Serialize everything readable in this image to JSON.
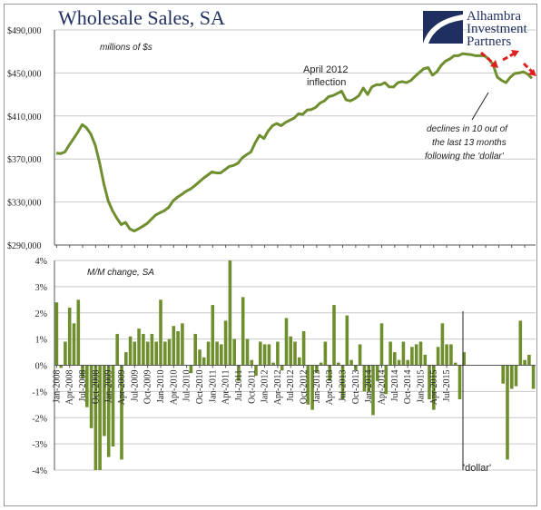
{
  "chart_data": [
    {
      "type": "line",
      "title": "Wholesale Sales, SA",
      "unit_label": "millions of $s",
      "ylim": [
        290000,
        490000
      ],
      "yticks": [
        "$290,000",
        "$330,000",
        "$370,000",
        "$410,000",
        "$450,000",
        "$490,000"
      ],
      "ytick_values": [
        290000,
        330000,
        370000,
        410000,
        450000,
        490000
      ],
      "grid": true,
      "series": [
        {
          "color": "#6f8f2f",
          "values": [
            375500,
            375000,
            376500,
            383000,
            389000,
            395000,
            402000,
            399000,
            393000,
            383000,
            367000,
            347000,
            331000,
            322000,
            315000,
            309000,
            311000,
            305000,
            303000,
            305000,
            307500,
            310000,
            314000,
            318000,
            320000,
            322000,
            325000,
            331000,
            334500,
            337000,
            340000,
            342000,
            345000,
            348500,
            352000,
            355000,
            358000,
            357000,
            357000,
            360000,
            363000,
            364000,
            366000,
            371000,
            374000,
            376500,
            385000,
            392000,
            389000,
            396000,
            401000,
            403000,
            401000,
            404000,
            406000,
            408000,
            412000,
            411500,
            415500,
            416000,
            418000,
            422000,
            424000,
            428000,
            429000,
            431000,
            433000,
            425000,
            424000,
            426000,
            429000,
            436000,
            430000,
            437000,
            439000,
            439000,
            441000,
            437000,
            437000,
            441000,
            442000,
            441000,
            443000,
            447000,
            450500,
            454000,
            455000,
            448000,
            451000,
            457000,
            461000,
            463000,
            466000,
            466000,
            468000,
            467500,
            467000,
            466000,
            466000,
            466000,
            463000,
            458000,
            446000,
            443000,
            441000,
            446000,
            449500,
            450000,
            451000,
            449000,
            445000
          ]
        }
      ],
      "annotations": {
        "inflection_line1": "April 2012",
        "inflection_line2": "inflection",
        "declines_line1": "declines in 10 out of",
        "declines_line2": "the last 13 months",
        "declines_line3": "following the 'dollar'"
      },
      "logo": {
        "line1": "Alhambra",
        "line2": "Investment",
        "line3": "Partners"
      }
    },
    {
      "type": "bar",
      "title": "M/M change, SA",
      "ylim": [
        -4,
        4
      ],
      "yticks": [
        "-4%",
        "-3%",
        "-2%",
        "-1%",
        "0%",
        "1%",
        "2%",
        "3%",
        "4%"
      ],
      "ytick_values": [
        -4,
        -3,
        -2,
        -1,
        0,
        1,
        2,
        3,
        4
      ],
      "grid": true,
      "color": "#6f8f2f",
      "xtick_labels": [
        "Jan-2008",
        "Apr-2008",
        "Jul-2008",
        "Oct-2008",
        "Jan-2009",
        "Apr-2009",
        "Jul-2009",
        "Oct-2009",
        "Jan-2010",
        "Apr-2010",
        "Jul-2010",
        "Oct-2010",
        "Jan-2011",
        "Apr-2011",
        "Jul-2011",
        "Oct-2011",
        "Jan-2012",
        "Apr-2012",
        "Jul-2012",
        "Oct-2012",
        "Jan-2013",
        "Apr-2013",
        "Jul-2013",
        "Oct-2013",
        "Jan-2014",
        "Apr-2014",
        "Jul-2014",
        "Oct-2014",
        "Jan-2015",
        "Apr-2015",
        "Jul-2015"
      ],
      "values": [
        2.4,
        -0.1,
        0.9,
        2.2,
        1.6,
        2.5,
        -0.5,
        -1.6,
        -2.4,
        -4.0,
        -4.0,
        -2.7,
        -3.5,
        -3.1,
        1.2,
        -3.6,
        0.5,
        1.1,
        0.9,
        1.4,
        1.2,
        0.9,
        1.2,
        0.9,
        2.5,
        0.9,
        1.0,
        1.5,
        1.3,
        1.6,
        0.0,
        -0.3,
        1.2,
        0.6,
        0.3,
        0.9,
        2.3,
        0.9,
        0.8,
        1.7,
        4.0,
        1.0,
        -0.6,
        2.6,
        1.0,
        0.2,
        -0.4,
        0.9,
        0.8,
        0.8,
        0.1,
        0.9,
        -0.2,
        1.8,
        1.1,
        0.9,
        0.3,
        1.3,
        -1.5,
        -1.7,
        -0.3,
        0.1,
        0.9,
        -0.6,
        2.3,
        0.1,
        -1.3,
        1.9,
        0.2,
        -0.2,
        0.8,
        -1.0,
        -1.0,
        -1.9,
        -0.6,
        1.6,
        -1.1,
        0.9,
        0.5,
        0.2,
        0.9,
        0.2,
        0.7,
        0.8,
        0.9,
        0.4,
        -1.3,
        -1.7,
        0.7,
        1.6,
        0.8,
        0.8,
        0.1,
        -1.3,
        0.5,
        0.0,
        0.0,
        0.0,
        0.0,
        0.0,
        0.0,
        0.0,
        0.0,
        -0.7,
        -3.6,
        -0.9,
        -0.8,
        1.7,
        0.2,
        0.4,
        -0.9
      ],
      "marker_label": "'dollar'"
    }
  ]
}
